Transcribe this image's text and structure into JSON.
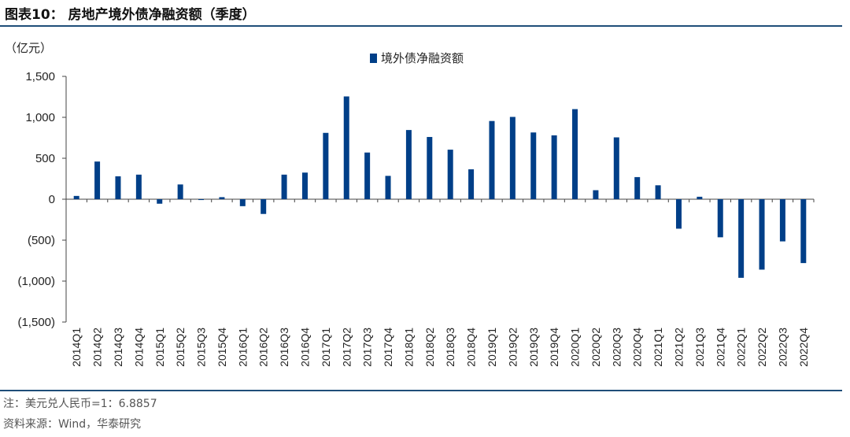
{
  "figure": {
    "title": "图表10： 房地产境外债净融资额（季度）",
    "note": "注：美元兑人民币=1：6.8857",
    "source": "资料来源：Wind，华泰研究"
  },
  "chart_data": {
    "type": "bar",
    "unit_label": "（亿元）",
    "categories": [
      "2014Q1",
      "2014Q2",
      "2014Q3",
      "2014Q4",
      "2015Q1",
      "2015Q2",
      "2015Q3",
      "2015Q4",
      "2016Q1",
      "2016Q2",
      "2016Q3",
      "2016Q4",
      "2017Q1",
      "2017Q2",
      "2017Q3",
      "2017Q4",
      "2018Q1",
      "2018Q2",
      "2018Q3",
      "2018Q4",
      "2019Q1",
      "2019Q2",
      "2019Q3",
      "2019Q4",
      "2020Q1",
      "2020Q2",
      "2020Q3",
      "2020Q4",
      "2021Q1",
      "2021Q2",
      "2021Q3",
      "2021Q4",
      "2022Q1",
      "2022Q2",
      "2022Q3",
      "2022Q4"
    ],
    "series": [
      {
        "name": "境外债净融资额",
        "color": "#003f88",
        "values": [
          40,
          460,
          280,
          300,
          -55,
          180,
          -10,
          25,
          -85,
          -180,
          300,
          325,
          810,
          1255,
          570,
          285,
          845,
          760,
          605,
          365,
          955,
          1005,
          815,
          780,
          1100,
          110,
          755,
          270,
          170,
          -360,
          30,
          -465,
          -960,
          -860,
          -515,
          -780
        ]
      }
    ],
    "ylim": [
      -1500,
      1500
    ],
    "yticks": [
      1500,
      1000,
      500,
      0,
      -500,
      -1000,
      -1500
    ],
    "ytick_labels": [
      "1,500",
      "1,000",
      "500",
      "0",
      "(500)",
      "(1,000)",
      "(1,500)"
    ],
    "legend_position": "top-center",
    "grid": false
  }
}
